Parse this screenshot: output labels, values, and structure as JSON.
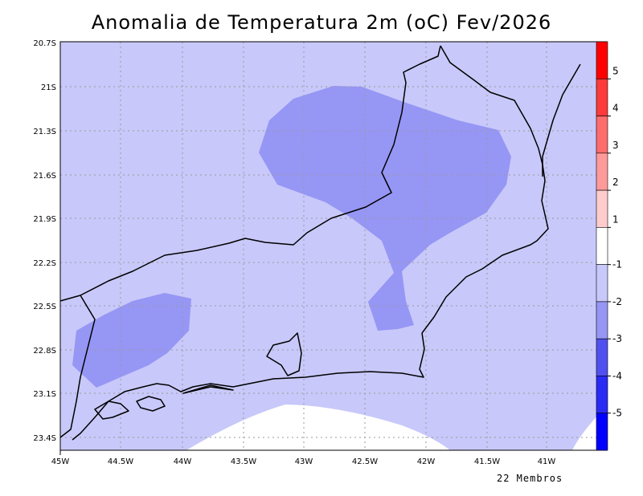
{
  "title": "Anomalia de Temperatura 2m (oC) Fev/2026",
  "footer": "22 Membros",
  "map": {
    "lon_ticks": [
      "45W",
      "44.5W",
      "44W",
      "43.5W",
      "43W",
      "42.5W",
      "42W",
      "41.5W",
      "41W"
    ],
    "lat_ticks": [
      "20.7S",
      "21S",
      "21.3S",
      "21.6S",
      "21.9S",
      "22.2S",
      "22.5S",
      "22.8S",
      "23.1S",
      "23.4S"
    ],
    "grid": true,
    "regions": [
      {
        "name": "background-anomaly",
        "range": "-1 to -2",
        "color": "#c8c8fa"
      },
      {
        "name": "north-cold-area",
        "range": "-2 to -3",
        "color": "#9696f5"
      },
      {
        "name": "southwest-cold-area",
        "range": "-2 to -3",
        "color": "#9696f5"
      },
      {
        "name": "offshore-neutral-area",
        "range": "-1 to 1",
        "color": "#ffffff"
      }
    ]
  },
  "colorbar": {
    "labels": [
      "5",
      "4",
      "3",
      "2",
      "1",
      "-1",
      "-2",
      "-3",
      "-4",
      "-5"
    ],
    "colors": [
      "#ff0000",
      "#ff3a3a",
      "#ff6c6c",
      "#ff9a9a",
      "#ffcccc",
      "#ffffff",
      "#c8c8fa",
      "#9696f5",
      "#5050f0",
      "#2a2af5",
      "#0000ff"
    ]
  }
}
